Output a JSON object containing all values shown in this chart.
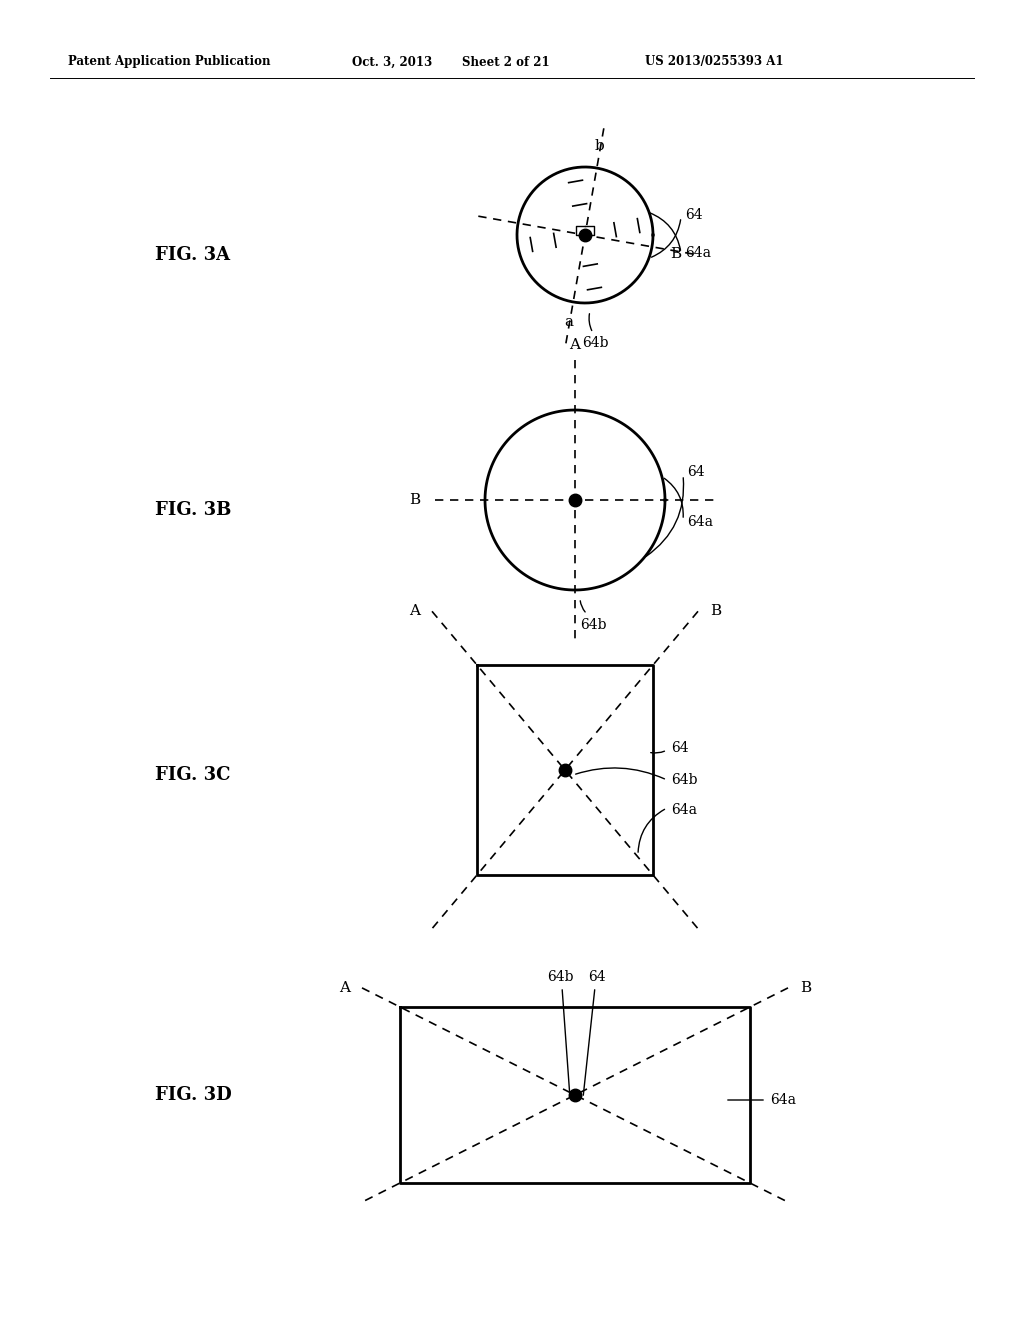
{
  "bg_color": "#ffffff",
  "header_text": "Patent Application Publication",
  "header_date": "Oct. 3, 2013",
  "header_sheet": "Sheet 2 of 21",
  "header_patent": "US 2013/0255393 A1",
  "fig3a_label": "FIG. 3A",
  "fig3b_label": "FIG. 3B",
  "fig3c_label": "FIG. 3C",
  "fig3d_label": "FIG. 3D",
  "lc": "#000000"
}
